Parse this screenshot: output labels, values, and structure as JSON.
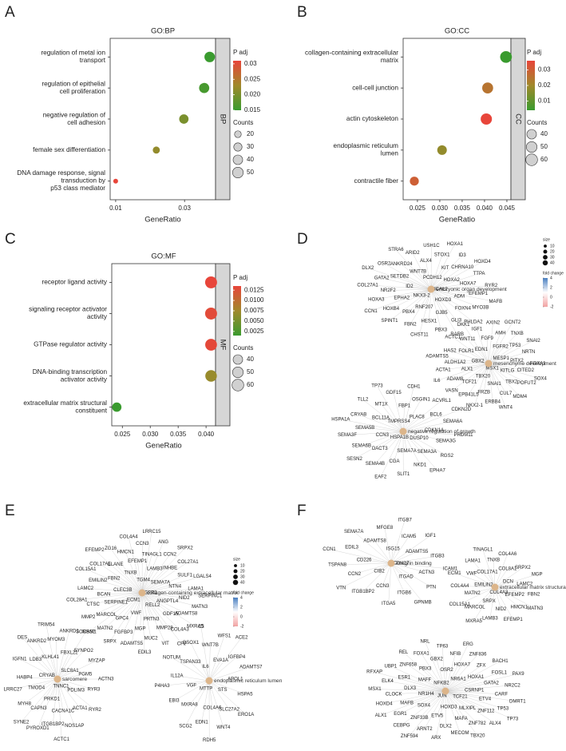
{
  "chart_data": [
    {
      "type": "dotplot",
      "panel": "A",
      "title": "GO:BP",
      "facet": "BP",
      "x_label": "GeneRatio",
      "categories": [
        "regulation of metal ion\ntransport",
        "regulation of epithelial\ncell proliferation",
        "negative regulation of\ncell adhesion",
        "female sex differentiation",
        "DNA damage response, signal\ntransduction by\np53 class mediator"
      ],
      "x": [
        0.0373,
        0.0357,
        0.0298,
        0.0218,
        0.01
      ],
      "counts": [
        48,
        45,
        38,
        22,
        10
      ],
      "p_adj": [
        0.015,
        0.016,
        0.02,
        0.022,
        0.031
      ],
      "xlim": [
        0.0084,
        0.039
      ],
      "xticks": [
        0.01,
        0.03
      ],
      "color_scale": {
        "title": "P adj",
        "ticks": [
          0.03,
          {
            "value": 0.025,
            "label": "0.025"
          },
          {
            "value": 0.02,
            "label": "0.020"
          },
          {
            "value": 0.015,
            "label": "0.015"
          }
        ],
        "colors": [
          "#3a9b2f",
          "#a0892c",
          "#e8453a"
        ]
      },
      "size_legend": {
        "title": "Counts",
        "values": [
          20,
          30,
          40,
          50
        ]
      }
    },
    {
      "type": "dotplot",
      "panel": "B",
      "title": "GO:CC",
      "facet": "CC",
      "x_label": "GeneRatio",
      "categories": [
        "collagen-containing extracellular\nmatrix",
        "cell-cell junction",
        "actin cytoskeleton",
        "endoplasmic reticulum\nlumen",
        "contractile fiber"
      ],
      "x": [
        0.0448,
        0.0407,
        0.0404,
        0.0305,
        0.0243
      ],
      "counts": [
        60,
        52,
        55,
        40,
        35
      ],
      "p_adj": [
        0.004,
        0.025,
        0.036,
        0.018,
        0.03
      ],
      "xlim": [
        0.0218,
        0.0459
      ],
      "xticks": [
        0.025,
        {
          "value": 0.03,
          "label": "0.030"
        },
        0.035,
        {
          "value": 0.04,
          "label": "0.040"
        },
        0.045
      ],
      "color_scale": {
        "title": "P adj",
        "ticks": [
          0.03,
          0.02,
          0.01
        ],
        "colors": [
          "#3a9b2f",
          "#a0892c",
          "#e8453a"
        ]
      },
      "size_legend": {
        "title": "Counts",
        "values": [
          40,
          50,
          60
        ]
      }
    },
    {
      "type": "dotplot",
      "panel": "C",
      "title": "GO:MF",
      "facet": "MF",
      "x_label": "GeneRatio",
      "categories": [
        "receptor ligand activity",
        "signaling receptor activator\nactivity",
        "GTPase regulator activity",
        "DNA-binding transcription\nactivator activity",
        "extracellular matrix structural\nconstituent"
      ],
      "x": [
        0.0409,
        0.0409,
        0.0409,
        0.0409,
        0.024
      ],
      "counts": [
        62,
        62,
        60,
        58,
        38
      ],
      "p_adj": [
        0.0135,
        0.013,
        0.0132,
        0.007,
        0.0015
      ],
      "xlim": [
        0.0231,
        0.0417
      ],
      "xticks": [
        0.025,
        {
          "value": 0.03,
          "label": "0.030"
        },
        0.035,
        {
          "value": 0.04,
          "label": "0.040"
        }
      ],
      "color_scale": {
        "title": "P adj",
        "ticks": [
          0.0125,
          {
            "value": 0.01,
            "label": "0.0100"
          },
          0.0075,
          {
            "value": 0.005,
            "label": "0.0050"
          },
          0.0025
        ],
        "colors": [
          "#3a9b2f",
          "#a0892c",
          "#e8453a"
        ]
      },
      "size_legend": {
        "title": "Counts",
        "values": [
          40,
          50,
          60
        ]
      }
    }
  ],
  "networks": [
    {
      "panel": "D",
      "clusters": [
        {
          "hub": "embryonic organ development",
          "genes": [
            "MICAL2",
            "NKX3-2",
            "PCDH12",
            "HOXD3",
            "ID2",
            "HOXA2",
            "RNF207",
            "WNT7B",
            "ADM",
            "EPHA2",
            "KIT",
            "GJB5",
            "SETDB2",
            "HOXA7",
            "PBX4",
            "ALX4",
            "FOXN4",
            "NR2F2",
            "CHRNA10",
            "HESX1",
            "ANKRD24",
            "EFEMP1",
            "HOXB4",
            "STOX1",
            "GLI3",
            "GATA2",
            "TTPA",
            "FBN2",
            "ARID2",
            "MYO3B",
            "HOXA3",
            "ID3",
            "PBX3",
            "OSR2",
            "RYR2",
            "SPINT1",
            "USH1C",
            "PHLDA2",
            "COL27A1",
            "HOXD4",
            "CHST11",
            "STRA6",
            "MAFB",
            "CCN1",
            "HOXA1",
            "RARB",
            "DLX2"
          ]
        },
        {
          "hub": "mesenchyme development",
          "genes": [
            "MSX1",
            "GBX2",
            "MESP1",
            "TBX20",
            "EDN1",
            "KITLG",
            "ALX1",
            "FGFR2",
            "SNAI1",
            "FOLR1",
            "PITX2",
            "TCF21",
            "FGF9",
            "TBX2",
            "ALDH1A2",
            "TP53",
            "FRZB",
            "WNT11",
            "CITED2",
            "ADAM8",
            "AMH",
            "CUL7",
            "HAS2",
            "NRTN",
            "EPB41L5",
            "IGF1",
            "POFUT2",
            "ACTA1",
            "TNXB",
            "ERBB4",
            "ACTC1",
            "FOXA1",
            "VASN",
            "AXIN2",
            "MDM4",
            "ADAMTS5",
            "SNAI2",
            "NKX2-1",
            "DKK1",
            "SOX4",
            "IL6",
            "GCNT2",
            "WNT4"
          ]
        },
        {
          "hub": "negative regulation of growth",
          "genes": [
            "HSPA1B",
            "TMPRSS4",
            "DUSP10",
            "CCN3",
            "PLAC8",
            "SEMA7A",
            "BCL11A",
            "CDKN1A",
            "DACT3",
            "FBP1",
            "SEMA3A",
            "SEMA5B",
            "BCL6",
            "CGA",
            "MT1X",
            "SEMA3G",
            "SEMA6B",
            "OSGIN1",
            "NKD1",
            "CRYAB",
            "SEMA6A",
            "SEMA4B",
            "GDF15",
            "RGS2",
            "SEMA3F",
            "ACVRL1",
            "SLIT1",
            "TLL2",
            "PRDM11",
            "SESN2",
            "CDH1",
            "EPHA7",
            "HSPA1A",
            "CDKN2D",
            "EAF2",
            "TP73"
          ]
        }
      ],
      "size_legend": {
        "title": "size",
        "values": [
          10,
          20,
          30,
          40
        ]
      },
      "color_legend": {
        "title": "fold change",
        "ticks": [
          4,
          2,
          0,
          -2
        ],
        "colors": [
          "#f2a3a3",
          "#ffffff",
          "#4a7fc1"
        ]
      }
    },
    {
      "panel": "E",
      "clusters": [
        {
          "hub": "collagen-containing extracellular matrix",
          "genes": [
            "FGFR2",
            "ECM1",
            "TGM4",
            "RELL2",
            "CLEC3B",
            "SEMA7A",
            "VWF",
            "TNXB",
            "ANGPTL4",
            "SERPINE1",
            "LAMB3",
            "PRTN3",
            "FBN2",
            "NTN4",
            "GPC4",
            "EFEMP1",
            "GDF15",
            "BCAN",
            "INHBE",
            "MGP",
            "ELANE",
            "NID2",
            "MARCOL",
            "TINAGL1",
            "MMP28",
            "EMILIN2",
            "SULF1",
            "FGFBP3",
            "HMCN1",
            "ADAMTS8",
            "CTSC",
            "CCN2",
            "MUC2",
            "COL17A1",
            "LAMA1",
            "MATN2",
            "CCN3",
            "COL4A3",
            "LAMC2",
            "COL27A1",
            "ADAMTS5",
            "ZG16",
            "MATN3",
            "MMP2",
            "ANG",
            "VIT",
            "COL15A1",
            "LGALS4",
            "SRPX",
            "COL4A4",
            "MXRA5",
            "COL28A1",
            "SRPX2",
            "EDIL3",
            "EFEMP2",
            "SERPINC1",
            "ICAM1",
            "LRRC15",
            "CFP"
          ]
        },
        {
          "hub": "sarcomere",
          "genes": [
            "TNNC1",
            "CRYAB",
            "SLC8A1",
            "PRKD1",
            "KLHL41",
            "PDLIM3",
            "TMOD4",
            "FBXL22",
            "CACNA1C",
            "LDB3",
            "PGM5",
            "CAPN3",
            "MYOM3",
            "ACTA1",
            "HABP4",
            "SYNPO2",
            "ITGB1BP2",
            "ANKRD2",
            "RYR3",
            "MYH8",
            "ANKRD1",
            "NOS1AP",
            "IGFN1",
            "MYZAP",
            "PYROXD1",
            "TRIM54",
            "RYR2",
            "LRRC27",
            "SORBS2",
            "ACTC1",
            "DES",
            "ACTN3",
            "SYNE2"
          ]
        },
        {
          "hub": "endoplasmic reticulum lumen",
          "genes": [
            "MTTP",
            "IL6",
            "STS",
            "VGF",
            "EVA1A",
            "COL4A6",
            "TSPAN33",
            "APOL1",
            "MXRA8",
            "WNT7B",
            "SLC27A2",
            "IL12A",
            "IGFBP4",
            "EDN1",
            "QSOX1",
            "HSPA5",
            "EBI3",
            "WFS1",
            "WNT4",
            "NOTUM",
            "ADAMTS7",
            "SCG2",
            "C3",
            "ERO1A",
            "P4HA3",
            "ACE2",
            "RDH5"
          ]
        }
      ],
      "size_legend": {
        "title": "size",
        "values": [
          10,
          20,
          30,
          40
        ]
      },
      "color_legend": {
        "title": "fold change",
        "ticks": [
          4,
          2,
          0,
          -2
        ],
        "colors": [
          "#f2a3a3",
          "#ffffff",
          "#4a7fc1"
        ]
      }
    },
    {
      "panel": "F",
      "clusters": [
        {
          "hub": "integrin binding",
          "genes": [
            "CDH17",
            "CIB2",
            "ISG15",
            "ITGAD",
            "CD226",
            "ADAMTS5",
            "CCN3",
            "ADAMTS8",
            "ACTN3",
            "CCN2",
            "ICAM5",
            "ITGB6",
            "EDIL3",
            "ITGB3",
            "ITGB1BP2",
            "MFGE8",
            "PTN",
            "TSPAN8",
            "IGF1",
            "ITGA5",
            "SEMA7A",
            "ICAM1",
            "VTN",
            "ITGB7",
            "GPNMB",
            "CCN1"
          ]
        },
        {
          "hub": "extracellular matrix structural constituent",
          "genes": [
            "COL4A3",
            "EMILIN2",
            "DCN",
            "SRPX",
            "COL17A1",
            "EFEMP2",
            "MATN2",
            "COL8A1",
            "NID2",
            "VWF",
            "LAMC2",
            "MARCOL",
            "TNXB",
            "HMCN1",
            "COL4A4",
            "SRPX2",
            "LAMB3",
            "LAMA1",
            "FBN2",
            "COL15A1",
            "COL4A6",
            "EFEMP1",
            "ECM1",
            "MGP",
            "MXRA5",
            "TINAGL1",
            "MATN3"
          ]
        },
        {
          "genes": [
            "JUN",
            "NFKB2",
            "TCF21",
            "NR1H4",
            "NR6A1",
            "HOXD3",
            "MAFF",
            "CSRNP1",
            "SOX4",
            "OSR2",
            "MLXIPL",
            "DLX3",
            "HOXA1",
            "ETV5",
            "PBX3",
            "ETV4",
            "MAFB",
            "HOXA7",
            "MAFA",
            "ESR1",
            "GATA2",
            "ZNF33B",
            "GBX2",
            "ZNF112",
            "CLOCK",
            "ZFX",
            "DLX2",
            "ZNF658",
            "CARF",
            "EGR1",
            "NFIB",
            "ZNF782",
            "ELK4",
            "FOSL1",
            "ARNT2",
            "FOXA1",
            "TP53",
            "HOXD4",
            "ZNF836",
            "MECOM",
            "UBP1",
            "NR2C2",
            "CEBPG",
            "TP63",
            "ALX4",
            "MSX1",
            "BACH1",
            "ARX",
            "REL",
            "DMRT1",
            "ALX1",
            "ERG",
            "TBX20",
            "RFXAP",
            "PAX9",
            "ZNF594",
            "NRL",
            "TP73"
          ]
        }
      ]
    }
  ]
}
